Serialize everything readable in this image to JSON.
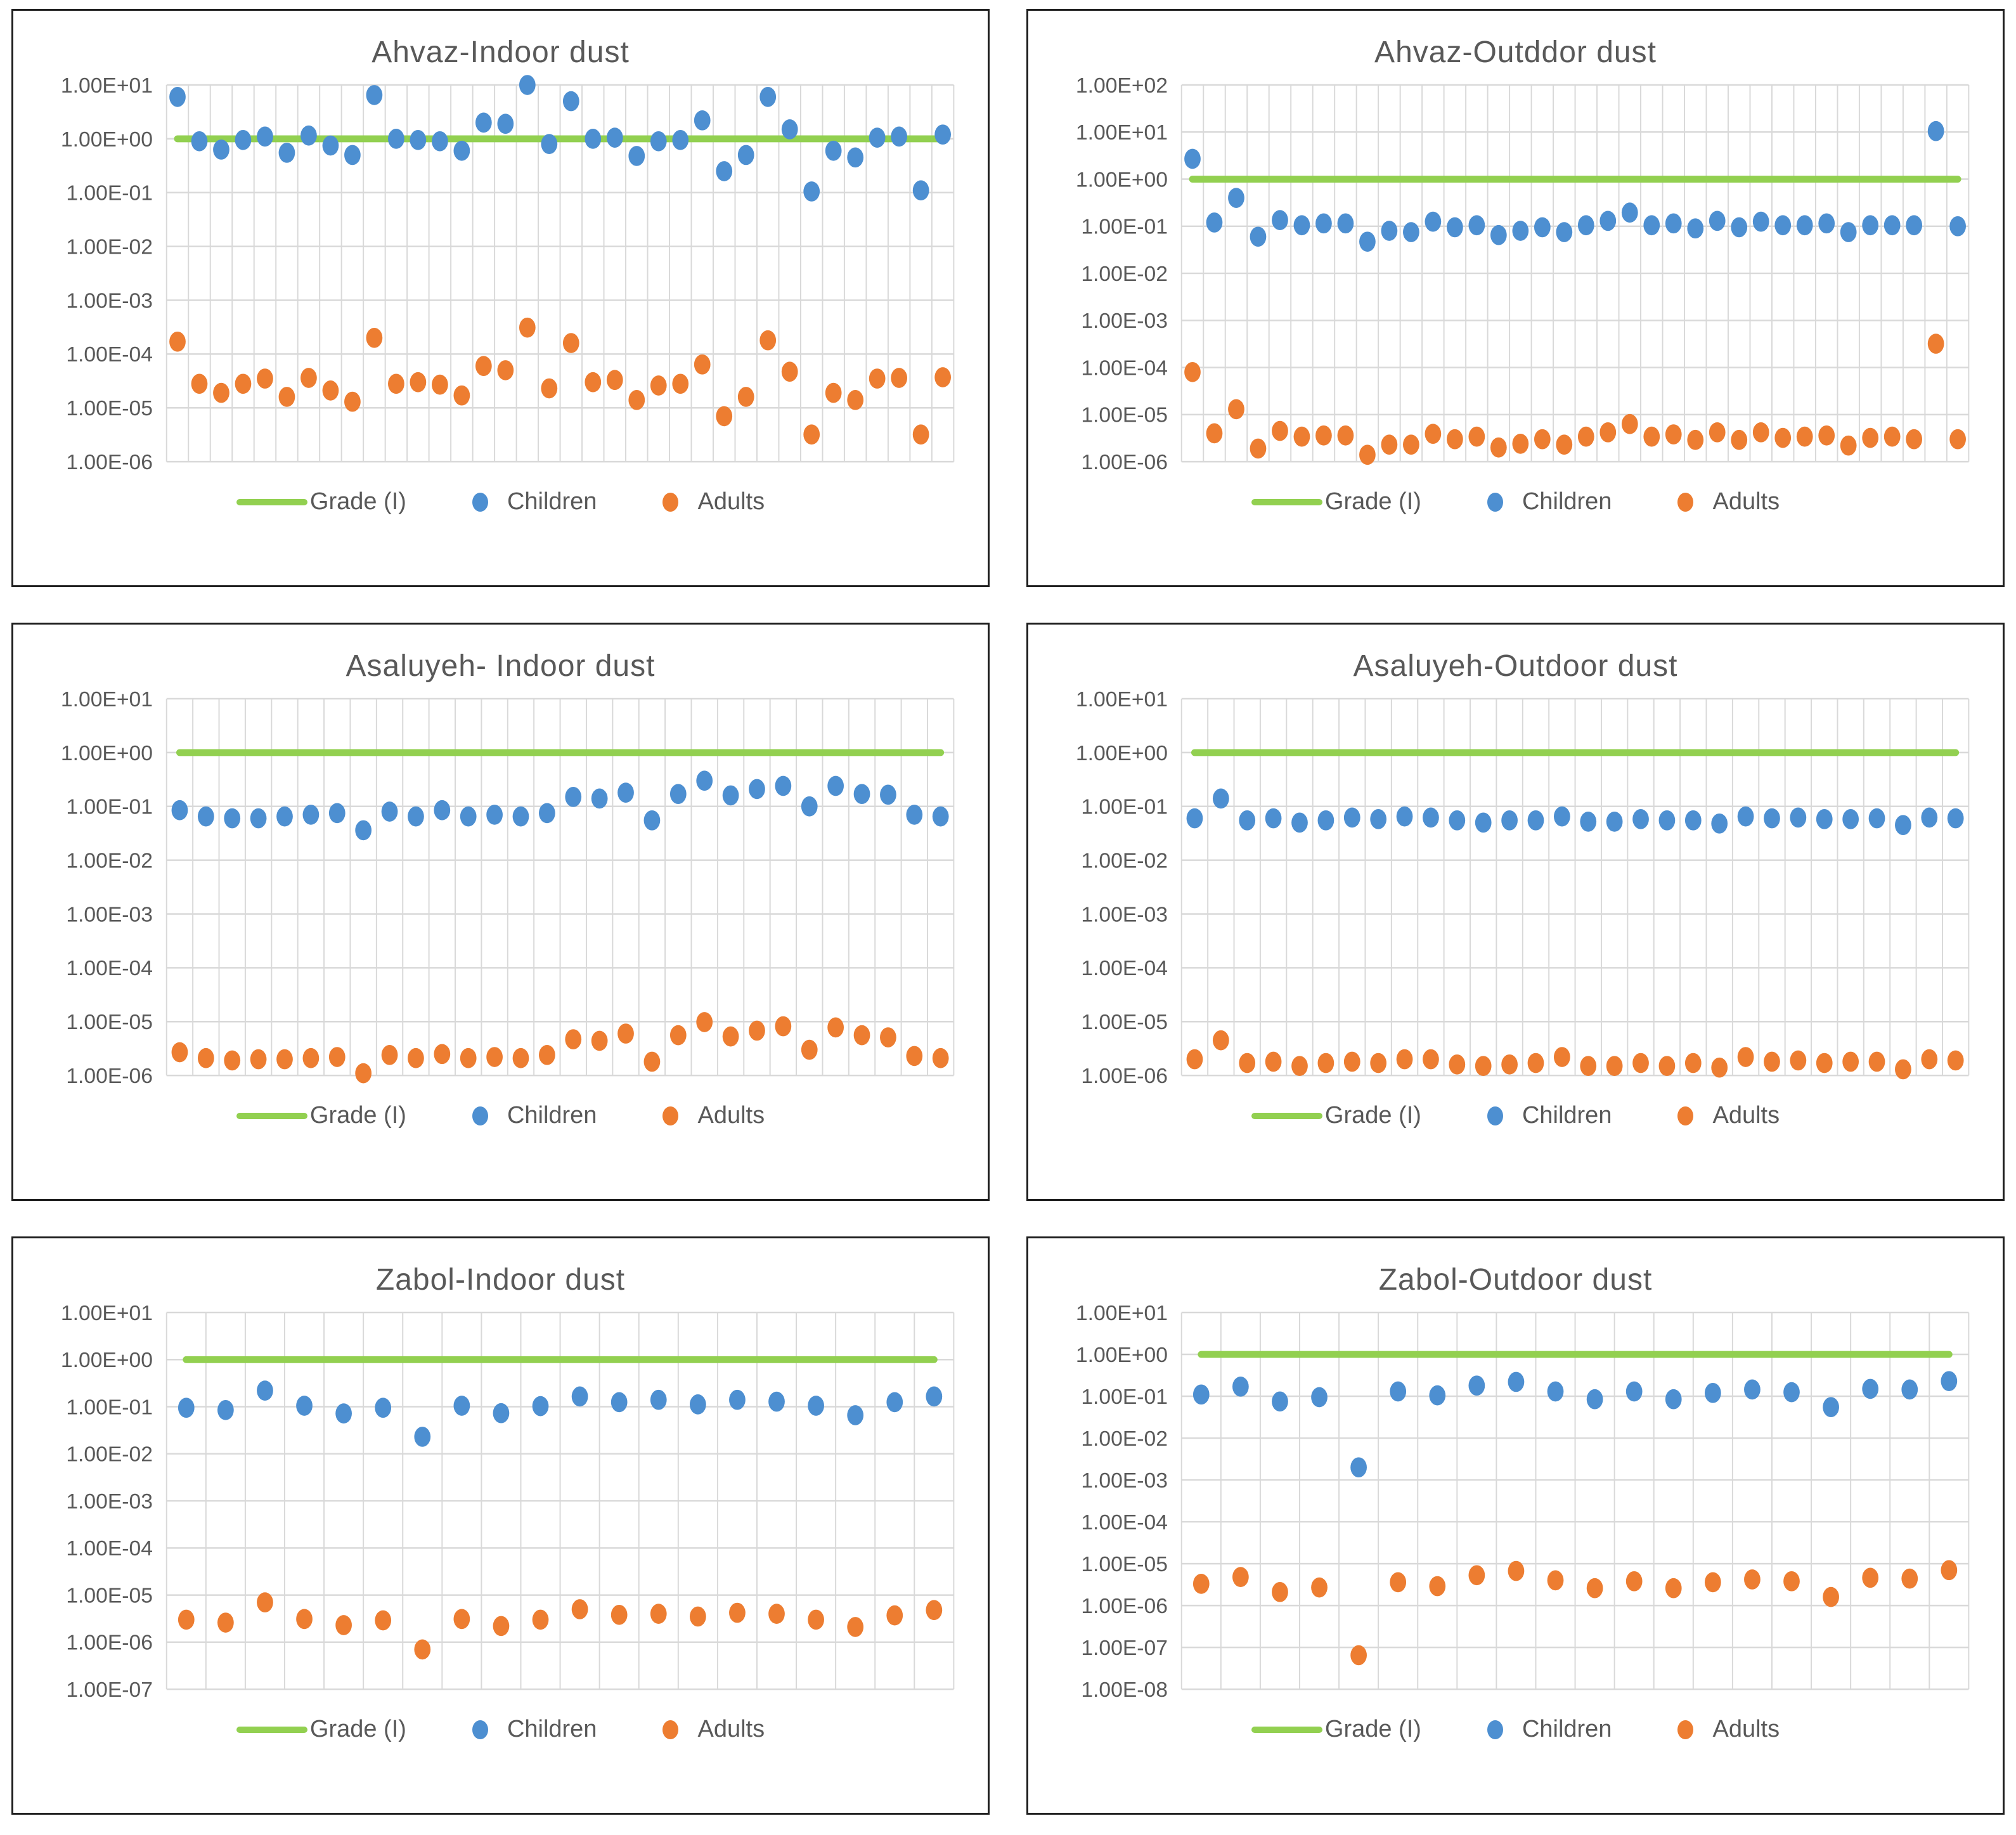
{
  "figure": {
    "legend": {
      "grade": "Grade (I)",
      "children": "Children",
      "adults": "Adults"
    },
    "colors": {
      "grade": "#92D050",
      "children": "#4D8FD1",
      "adults": "#ED7D31",
      "grid": "#D9D9D9",
      "text": "#595959",
      "border": "#1F1F1F"
    }
  },
  "chart_data": [
    {
      "type": "scatter",
      "title": "Ahvaz-Indoor dust",
      "y_ticks": [
        "1.00E+01",
        "1.00E+00",
        "1.00E-01",
        "1.00E-02",
        "1.00E-03",
        "1.00E-04",
        "1.00E-05",
        "1.00E-06"
      ],
      "ymax_exp": 1,
      "grade_value": 1,
      "grid": true,
      "legend_position": "bottom",
      "series": [
        {
          "name": "Children",
          "values": [
            6,
            0.9,
            0.63,
            0.95,
            1.1,
            0.55,
            1.15,
            0.75,
            0.5,
            6.5,
            1.0,
            0.95,
            0.9,
            0.6,
            2.0,
            1.9,
            10,
            0.8,
            5,
            1.0,
            1.05,
            0.48,
            0.9,
            0.95,
            2.2,
            0.25,
            0.5,
            6,
            1.5,
            0.105,
            0.6,
            0.45,
            1.05,
            1.1,
            0.11,
            1.2
          ]
        },
        {
          "name": "Adults",
          "values": [
            0.00017,
            2.8e-05,
            1.9e-05,
            2.8e-05,
            3.5e-05,
            1.6e-05,
            3.6e-05,
            2.1e-05,
            1.3e-05,
            0.0002,
            2.8e-05,
            3e-05,
            2.7e-05,
            1.7e-05,
            6e-05,
            5e-05,
            0.00031,
            2.3e-05,
            0.00016,
            3e-05,
            3.3e-05,
            1.4e-05,
            2.6e-05,
            2.8e-05,
            6.4e-05,
            7e-06,
            1.6e-05,
            0.00018,
            4.7e-05,
            3.2e-06,
            1.9e-05,
            1.4e-05,
            3.5e-05,
            3.6e-05,
            3.2e-06,
            3.7e-05
          ]
        }
      ]
    },
    {
      "type": "scatter",
      "title": "Ahvaz-Outddor dust",
      "y_ticks": [
        "1.00E+02",
        "1.00E+01",
        "1.00E+00",
        "1.00E-01",
        "1.00E-02",
        "1.00E-03",
        "1.00E-04",
        "1.00E-05",
        "1.00E-06"
      ],
      "ymax_exp": 2,
      "grade_value": 1,
      "grid": true,
      "legend_position": "bottom",
      "series": [
        {
          "name": "Children",
          "values": [
            2.7,
            0.12,
            0.4,
            0.06,
            0.135,
            0.105,
            0.115,
            0.115,
            0.047,
            0.08,
            0.075,
            0.125,
            0.095,
            0.105,
            0.065,
            0.08,
            0.095,
            0.075,
            0.105,
            0.13,
            0.195,
            0.105,
            0.115,
            0.09,
            0.13,
            0.095,
            0.125,
            0.105,
            0.105,
            0.115,
            0.075,
            0.105,
            0.105,
            0.105,
            10.5,
            0.1
          ]
        },
        {
          "name": "Adults",
          "values": [
            8e-05,
            4e-06,
            1.3e-05,
            1.9e-06,
            4.5e-06,
            3.4e-06,
            3.6e-06,
            3.6e-06,
            1.4e-06,
            2.3e-06,
            2.3e-06,
            3.9e-06,
            3e-06,
            3.4e-06,
            2e-06,
            2.4e-06,
            3e-06,
            2.3e-06,
            3.4e-06,
            4.2e-06,
            6.3e-06,
            3.4e-06,
            3.8e-06,
            2.9e-06,
            4.2e-06,
            2.9e-06,
            4.2e-06,
            3.2e-06,
            3.4e-06,
            3.6e-06,
            2.2e-06,
            3.2e-06,
            3.4e-06,
            3e-06,
            0.00032,
            3e-06
          ]
        }
      ]
    },
    {
      "type": "scatter",
      "title": "Asaluyeh- Indoor dust",
      "y_ticks": [
        "1.00E+01",
        "1.00E+00",
        "1.00E-01",
        "1.00E-02",
        "1.00E-03",
        "1.00E-04",
        "1.00E-05",
        "1.00E-06"
      ],
      "ymax_exp": 1,
      "grade_value": 1,
      "grid": true,
      "legend_position": "bottom",
      "series": [
        {
          "name": "Children",
          "values": [
            0.085,
            0.065,
            0.06,
            0.06,
            0.065,
            0.07,
            0.075,
            0.036,
            0.08,
            0.065,
            0.085,
            0.065,
            0.07,
            0.065,
            0.075,
            0.15,
            0.14,
            0.18,
            0.055,
            0.17,
            0.3,
            0.16,
            0.21,
            0.24,
            0.1,
            0.24,
            0.17,
            0.165,
            0.07,
            0.065
          ]
        },
        {
          "name": "Adults",
          "values": [
            2.7e-06,
            2.1e-06,
            1.9e-06,
            2e-06,
            2e-06,
            2.1e-06,
            2.2e-06,
            1.1e-06,
            2.4e-06,
            2.1e-06,
            2.5e-06,
            2.1e-06,
            2.2e-06,
            2.1e-06,
            2.4e-06,
            4.7e-06,
            4.4e-06,
            6e-06,
            1.8e-06,
            5.6e-06,
            9.8e-06,
            5.3e-06,
            6.8e-06,
            8.2e-06,
            3e-06,
            7.8e-06,
            5.6e-06,
            5.1e-06,
            2.3e-06,
            2.1e-06
          ]
        }
      ]
    },
    {
      "type": "scatter",
      "title": "Asaluyeh-Outdoor dust",
      "y_ticks": [
        "1.00E+01",
        "1.00E+00",
        "1.00E-01",
        "1.00E-02",
        "1.00E-03",
        "1.00E-04",
        "1.00E-05",
        "1.00E-06"
      ],
      "ymax_exp": 1,
      "grade_value": 1,
      "grid": true,
      "legend_position": "bottom",
      "series": [
        {
          "name": "Children",
          "values": [
            0.06,
            0.14,
            0.055,
            0.06,
            0.05,
            0.055,
            0.062,
            0.058,
            0.065,
            0.062,
            0.055,
            0.05,
            0.055,
            0.055,
            0.065,
            0.052,
            0.052,
            0.058,
            0.055,
            0.055,
            0.048,
            0.065,
            0.06,
            0.062,
            0.058,
            0.058,
            0.06,
            0.045,
            0.062,
            0.06
          ]
        },
        {
          "name": "Adults",
          "values": [
            2e-06,
            4.5e-06,
            1.7e-06,
            1.8e-06,
            1.5e-06,
            1.7e-06,
            1.8e-06,
            1.7e-06,
            2e-06,
            2e-06,
            1.6e-06,
            1.5e-06,
            1.6e-06,
            1.7e-06,
            2.2e-06,
            1.5e-06,
            1.5e-06,
            1.7e-06,
            1.5e-06,
            1.7e-06,
            1.4e-06,
            2.2e-06,
            1.8e-06,
            1.9e-06,
            1.7e-06,
            1.8e-06,
            1.8e-06,
            1.3e-06,
            2e-06,
            1.9e-06
          ]
        }
      ]
    },
    {
      "type": "scatter",
      "title": "Zabol-Indoor dust",
      "y_ticks": [
        "1.00E+01",
        "1.00E+00",
        "1.00E-01",
        "1.00E-02",
        "1.00E-03",
        "1.00E-04",
        "1.00E-05",
        "1.00E-06",
        "1.00E-07"
      ],
      "ymax_exp": 1,
      "grade_value": 1,
      "grid": true,
      "legend_position": "bottom",
      "series": [
        {
          "name": "Children",
          "values": [
            0.095,
            0.085,
            0.22,
            0.105,
            0.072,
            0.095,
            0.023,
            0.105,
            0.073,
            0.103,
            0.165,
            0.125,
            0.14,
            0.112,
            0.14,
            0.128,
            0.105,
            0.066,
            0.125,
            0.165
          ]
        },
        {
          "name": "Adults",
          "values": [
            3e-06,
            2.6e-06,
            7e-06,
            3.1e-06,
            2.3e-06,
            2.9e-06,
            7e-07,
            3.1e-06,
            2.2e-06,
            3e-06,
            5e-06,
            3.8e-06,
            4e-06,
            3.5e-06,
            4.2e-06,
            4e-06,
            3e-06,
            2.1e-06,
            3.7e-06,
            4.8e-06
          ]
        }
      ]
    },
    {
      "type": "scatter",
      "title": "Zabol-Outdoor dust",
      "y_ticks": [
        "1.00E+01",
        "1.00E+00",
        "1.00E-01",
        "1.00E-02",
        "1.00E-03",
        "1.00E-04",
        "1.00E-05",
        "1.00E-06",
        "1.00E-07",
        "1.00E-08"
      ],
      "ymax_exp": 1,
      "grade_value": 1,
      "grid": true,
      "legend_position": "bottom",
      "series": [
        {
          "name": "Children",
          "values": [
            0.11,
            0.17,
            0.075,
            0.095,
            0.002,
            0.13,
            0.105,
            0.18,
            0.22,
            0.13,
            0.085,
            0.13,
            0.085,
            0.12,
            0.145,
            0.125,
            0.055,
            0.15,
            0.145,
            0.23
          ]
        },
        {
          "name": "Adults",
          "values": [
            3.3e-06,
            4.8e-06,
            2.1e-06,
            2.7e-06,
            6.5e-08,
            3.6e-06,
            2.9e-06,
            5.3e-06,
            6.7e-06,
            4e-06,
            2.6e-06,
            3.8e-06,
            2.6e-06,
            3.6e-06,
            4.2e-06,
            3.8e-06,
            1.6e-06,
            4.6e-06,
            4.4e-06,
            7e-06
          ]
        }
      ]
    }
  ]
}
